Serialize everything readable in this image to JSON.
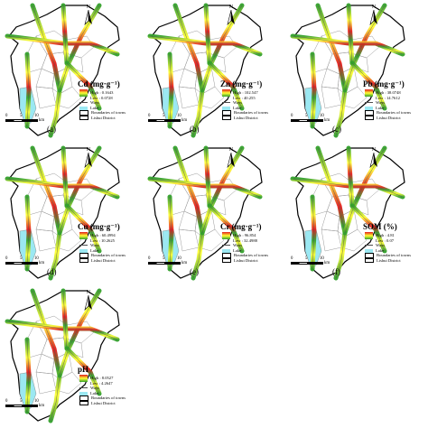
{
  "colors": {
    "high": "#e31a1c",
    "mid": "#ffff33",
    "low": "#33a02c",
    "lake": "#9be8f2",
    "ways": "#4d4d4d"
  },
  "icons": {
    "north_arrow": "north-arrow-icon"
  },
  "scale_bar": {
    "ticks": [
      "0",
      "5",
      "10"
    ],
    "unit": "km"
  },
  "legend_common": {
    "ways": "Ways",
    "lake": "Lake",
    "boundaries": "Boundaries of towns",
    "district": "Lishui District"
  },
  "panels": [
    {
      "label": "(a)",
      "title": "Cd (mg·g⁻¹)",
      "high": "High : 0.1643",
      "low": "Low : 0.0728"
    },
    {
      "label": "(b)",
      "title": "Zn (mg·g⁻¹)",
      "high": "High : 102.547",
      "low": "Low : 40.255"
    },
    {
      "label": "(c)",
      "title": "Pb (mg·g⁻¹)",
      "high": "High : 38.0748",
      "low": "Low : 14.7612"
    },
    {
      "label": "(d)",
      "title": "Cu (mg·g⁻¹)",
      "high": "High : 60.4994",
      "low": "Low : 10.2625"
    },
    {
      "label": "(e)",
      "title": "Cr (mg·g⁻¹)",
      "high": "High : 96.854",
      "low": "Low : 32.4988"
    },
    {
      "label": "(f)",
      "title": "SOM (%)",
      "high": "High : 4.81",
      "low": "Low : 0.07"
    },
    {
      "label": "",
      "title": "pH",
      "high": "High : 8.0527",
      "low": "Low : 4.2647"
    }
  ]
}
